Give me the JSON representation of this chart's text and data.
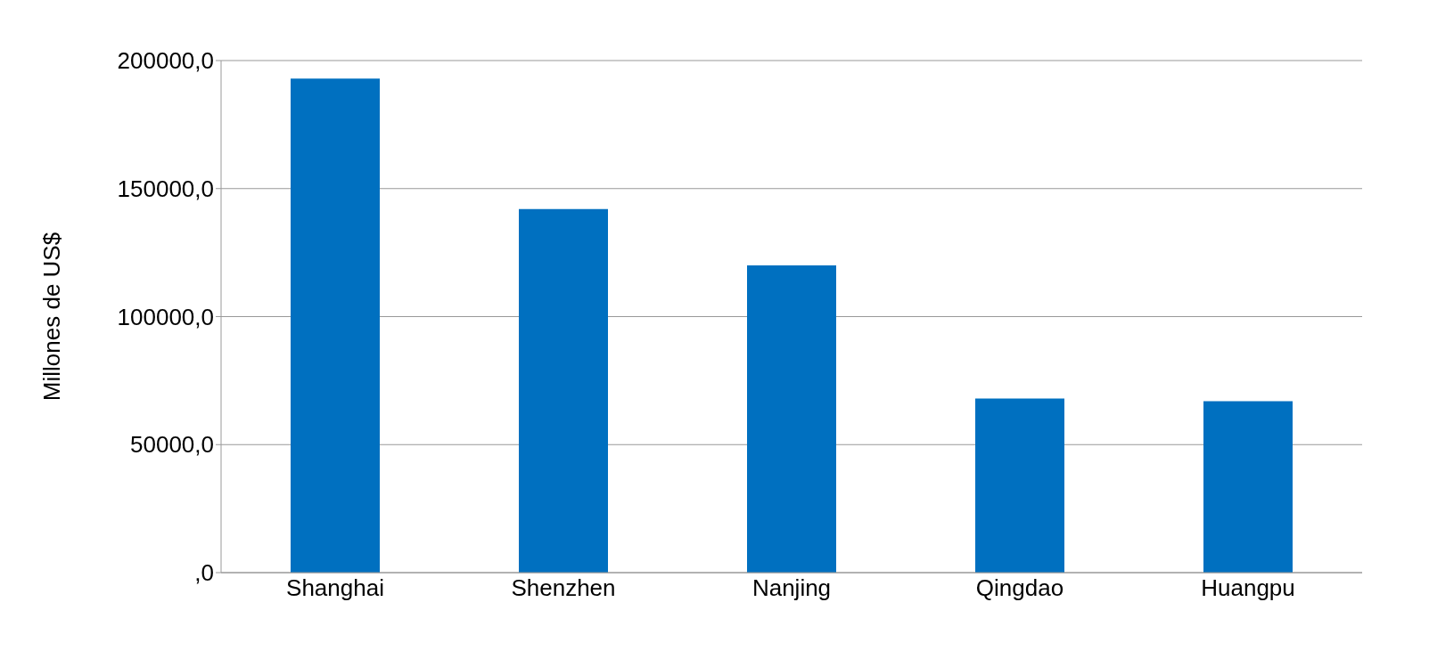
{
  "chart_data": {
    "type": "bar",
    "ylabel": "Millones de US$",
    "categories": [
      "Shanghai",
      "Shenzhen",
      "Nanjing",
      "Qingdao",
      "Huangpu"
    ],
    "values": [
      193000,
      142000,
      120000,
      68000,
      67000
    ],
    "color": "#0070c0",
    "ylim": [
      0,
      200000
    ],
    "yticks": [
      {
        "value": 0,
        "label": ",0"
      },
      {
        "value": 50000,
        "label": "50000,0"
      },
      {
        "value": 100000,
        "label": "100000,0"
      },
      {
        "value": 150000,
        "label": "150000,0"
      },
      {
        "value": 200000,
        "label": "200000,0"
      }
    ],
    "grid": "y"
  }
}
